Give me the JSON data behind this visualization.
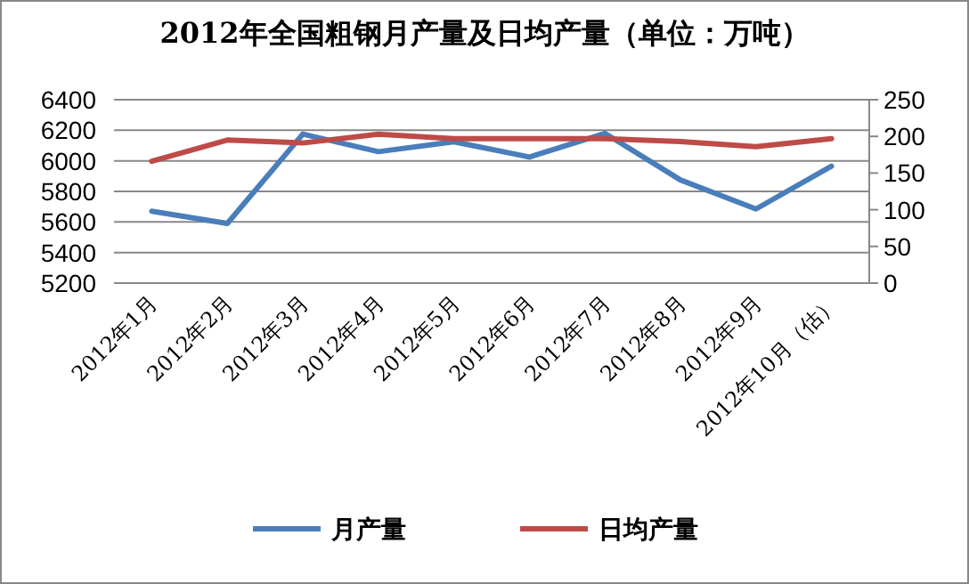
{
  "chart_data": {
    "type": "line",
    "title": "2012年全国粗钢月产量及日均产量（单位：万吨）",
    "categories": [
      "2012年1月",
      "2012年2月",
      "2012年3月",
      "2012年4月",
      "2012年5月",
      "2012年6月",
      "2012年7月",
      "2012年8月",
      "2012年9月",
      "2012年10月（估）"
    ],
    "series": [
      {
        "name": "月产量",
        "color": "#4a7ebb",
        "values": [
          5670,
          5590,
          6175,
          6060,
          6125,
          6025,
          6180,
          5875,
          5685,
          5965
        ]
      },
      {
        "name": "日均产量",
        "color": "#be4b48",
        "axis": "y2",
        "values": [
          166,
          195,
          191,
          203,
          197,
          197,
          197,
          193,
          186,
          197
        ]
      }
    ],
    "ylim": [
      5200,
      6400
    ],
    "yticks": [
      5200,
      5400,
      5600,
      5800,
      6000,
      6200,
      6400
    ],
    "y2lim": [
      0,
      250
    ],
    "y2ticks": [
      0,
      50,
      100,
      150,
      200,
      250
    ],
    "grid": "y",
    "legend": "bottom",
    "marker": "none",
    "line_style": "solid"
  }
}
